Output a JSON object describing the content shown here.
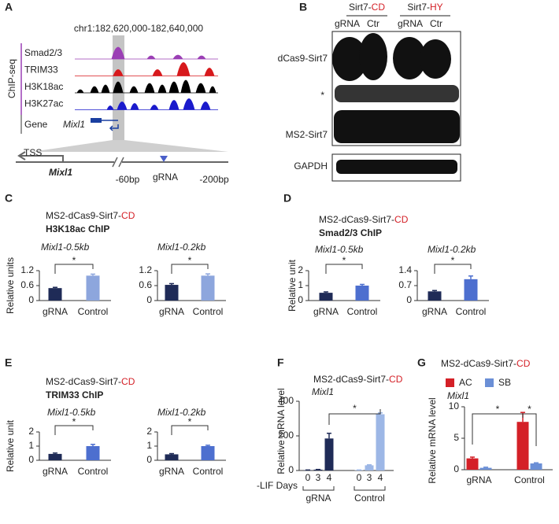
{
  "panel_labels": [
    "A",
    "B",
    "C",
    "D",
    "E",
    "F",
    "G"
  ],
  "genome_browser": {
    "coordinates": "chr1:182,620,000-182,640,000",
    "assay": "ChIP-seq",
    "tracks": [
      {
        "name": "Smad2/3",
        "color": "#9b3fb5"
      },
      {
        "name": "TRIM33",
        "color": "#d7191c"
      },
      {
        "name": "H3K18ac",
        "color": "#000000"
      },
      {
        "name": "H3K27ac",
        "color": "#1a1acc"
      }
    ],
    "gene_label": "Gene",
    "gene": "Mixl1",
    "tss": "TSS",
    "gene_zoom": "Mixl1",
    "positions": [
      "-60bp",
      "gRNA",
      "-200bp"
    ]
  },
  "western_blot": {
    "groups": [
      {
        "name": "Sirt7-",
        "mutant": "CD"
      },
      {
        "name": "Sirt7-",
        "mutant": "HY"
      }
    ],
    "lanes": [
      "gRNA",
      "Ctr",
      "gRNA",
      "Ctr"
    ],
    "bands": [
      "dCas9-Sirt7",
      "*",
      "MS2-Sirt7",
      "GAPDH"
    ]
  },
  "chart_data": [
    {
      "type": "bar",
      "title": "MS2-dCas9-Sirt7-",
      "title_highlight": "CD",
      "chip": "H3K18ac ChIP",
      "subtitle": "Mixl1-0.5kb",
      "ylabel": "Relative units",
      "categories": [
        "gRNA",
        "Control"
      ],
      "values": [
        0.5,
        1.0
      ],
      "errors": [
        0.03,
        0.06
      ],
      "colors": [
        "#1f2b57",
        "#8da6dd"
      ],
      "ylim": [
        0,
        1.2
      ],
      "yticks": [
        0,
        0.6,
        1.2
      ],
      "annotation": "*"
    },
    {
      "type": "bar",
      "subtitle": "Mixl1-0.2kb",
      "categories": [
        "gRNA",
        "Control"
      ],
      "values": [
        0.63,
        1.0
      ],
      "errors": [
        0.05,
        0.07
      ],
      "colors": [
        "#1f2b57",
        "#8da6dd"
      ],
      "ylim": [
        0,
        1.2
      ],
      "yticks": [
        0,
        0.6,
        1.2
      ],
      "annotation": "*"
    },
    {
      "type": "bar",
      "title": "MS2-dCas9-Sirt7-",
      "title_highlight": "CD",
      "chip": "Smad2/3 ChIP",
      "subtitle": "Mixl1-0.5kb",
      "ylabel": "Relative unit",
      "categories": [
        "gRNA",
        "Control"
      ],
      "values": [
        0.52,
        1.0
      ],
      "errors": [
        0.06,
        0.08
      ],
      "colors": [
        "#1f2b57",
        "#4d6fcf"
      ],
      "ylim": [
        0,
        2
      ],
      "yticks": [
        0,
        1,
        2
      ],
      "annotation": "*"
    },
    {
      "type": "bar",
      "subtitle": "Mixl1-0.2kb",
      "categories": [
        "gRNA",
        "Control"
      ],
      "values": [
        0.43,
        1.0
      ],
      "errors": [
        0.04,
        0.15
      ],
      "colors": [
        "#1f2b57",
        "#4d6fcf"
      ],
      "ylim": [
        0,
        1.4
      ],
      "yticks": [
        0,
        0.7,
        1.4
      ],
      "annotation": "*"
    },
    {
      "type": "bar",
      "title": "MS2-dCas9-Sirt7-",
      "title_highlight": "CD",
      "chip": "TRIM33 ChIP",
      "subtitle": "Mixl1-0.5kb",
      "ylabel": "Relative unit",
      "categories": [
        "gRNA",
        "Control"
      ],
      "values": [
        0.45,
        1.0
      ],
      "errors": [
        0.06,
        0.12
      ],
      "colors": [
        "#1f2b57",
        "#4d6fcf"
      ],
      "ylim": [
        0,
        2
      ],
      "yticks": [
        0,
        1,
        2
      ],
      "annotation": "*"
    },
    {
      "type": "bar",
      "subtitle": "Mixl1-0.2kb",
      "categories": [
        "gRNA",
        "Control"
      ],
      "values": [
        0.42,
        1.0
      ],
      "errors": [
        0.05,
        0.06
      ],
      "colors": [
        "#1f2b57",
        "#4d6fcf"
      ],
      "ylim": [
        0,
        2
      ],
      "yticks": [
        0,
        1,
        2
      ],
      "annotation": "*"
    },
    {
      "type": "bar",
      "title": "MS2-dCas9-Sirt7-",
      "title_highlight": "CD",
      "subtitle": "Mixl1",
      "ylabel": "Relative mRNA level",
      "xlabel": "-LIF Days",
      "categories": [
        "0",
        "3",
        "4"
      ],
      "series": [
        {
          "name": "gRNA",
          "color": "#1f2b57",
          "values": [
            2,
            5,
            185
          ],
          "errors": [
            1,
            1,
            30
          ]
        },
        {
          "name": "Control",
          "color": "#9db7e6",
          "values": [
            2,
            30,
            325
          ],
          "errors": [
            1,
            3,
            8
          ]
        }
      ],
      "ylim": [
        0,
        400
      ],
      "yticks": [
        0,
        200,
        400
      ],
      "annotation": "*"
    },
    {
      "type": "bar",
      "title": "MS2-dCas9-Sirt7-",
      "title_highlight": "CD",
      "subtitle": "Mixl1",
      "ylabel": "Relative mRNA level",
      "legend": true,
      "categories": [
        "gRNA",
        "Control"
      ],
      "series": [
        {
          "name": "AC",
          "color": "#d42027",
          "values": [
            1.8,
            7.6
          ],
          "errors": [
            0.2,
            1.5
          ]
        },
        {
          "name": "SB",
          "color": "#6b8fd6",
          "values": [
            0.3,
            1.0
          ],
          "errors": [
            0.1,
            0.1
          ]
        }
      ],
      "ylim": [
        0,
        10
      ],
      "yticks": [
        0,
        5,
        10
      ],
      "annotations": [
        "*",
        "*"
      ]
    }
  ]
}
